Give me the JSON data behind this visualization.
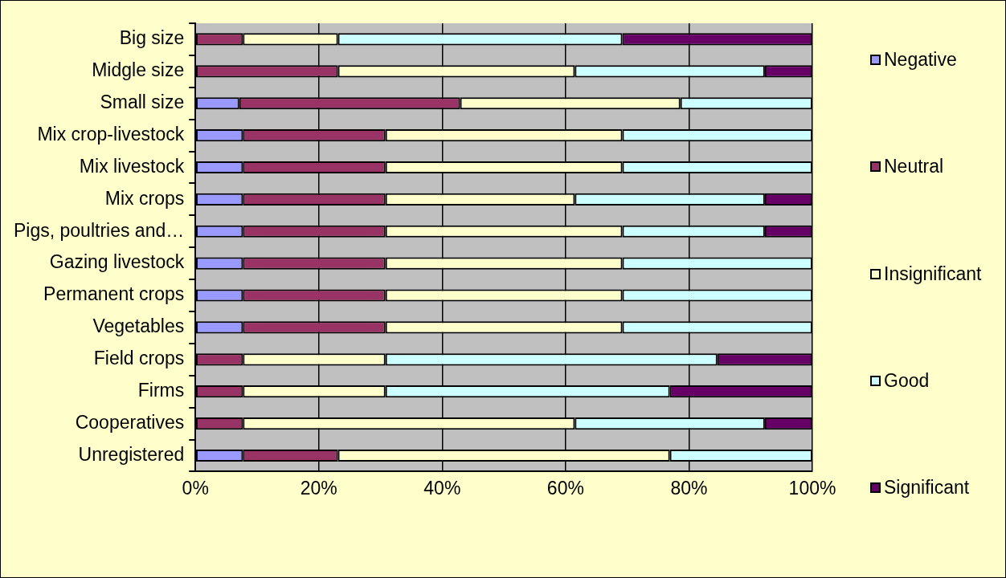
{
  "chart_data": {
    "type": "bar",
    "orientation": "horizontal",
    "stacked": true,
    "categories": [
      "Big size",
      "Midgle size",
      "Small size",
      "Mix crop-livestock",
      "Mix livestock",
      "Mix crops",
      "Pigs, poultries and…",
      "Gazing livestock",
      "Permanent crops",
      "Vegetables",
      "Field crops",
      "Firms",
      "Cooperatives",
      "Unregistered"
    ],
    "series": [
      {
        "name": "Negative",
        "color": "#9999ff",
        "values": [
          0,
          0,
          7.1,
          7.7,
          7.7,
          7.7,
          7.7,
          7.7,
          7.7,
          7.7,
          0,
          0,
          0,
          7.7
        ]
      },
      {
        "name": "Neutral",
        "color": "#993366",
        "values": [
          7.7,
          23.1,
          35.8,
          23.1,
          23.1,
          23.1,
          23.1,
          23.1,
          23.1,
          23.1,
          7.7,
          7.7,
          7.7,
          15.4
        ]
      },
      {
        "name": "Insignificant",
        "color": "#ffffcc",
        "values": [
          15.4,
          38.4,
          35.7,
          38.4,
          38.4,
          30.7,
          38.4,
          38.4,
          38.4,
          38.4,
          23.1,
          23.1,
          53.8,
          53.8
        ]
      },
      {
        "name": "Good",
        "color": "#ccffff",
        "values": [
          46.1,
          30.8,
          21.4,
          30.8,
          30.8,
          30.8,
          23.1,
          30.8,
          30.8,
          30.8,
          53.8,
          46.1,
          30.8,
          23.1
        ]
      },
      {
        "name": "Significant",
        "color": "#660066",
        "values": [
          30.8,
          7.7,
          0,
          0,
          0,
          7.7,
          7.7,
          0,
          0,
          0,
          15.4,
          23.1,
          7.7,
          0
        ]
      }
    ],
    "xlim": [
      0,
      100
    ],
    "xticks": [
      {
        "value": 0,
        "label": "0%"
      },
      {
        "value": 20,
        "label": "20%"
      },
      {
        "value": 40,
        "label": "40%"
      },
      {
        "value": 60,
        "label": "60%"
      },
      {
        "value": 80,
        "label": "80%"
      },
      {
        "value": 100,
        "label": "100%"
      }
    ],
    "grid": "x",
    "legend": "right"
  }
}
